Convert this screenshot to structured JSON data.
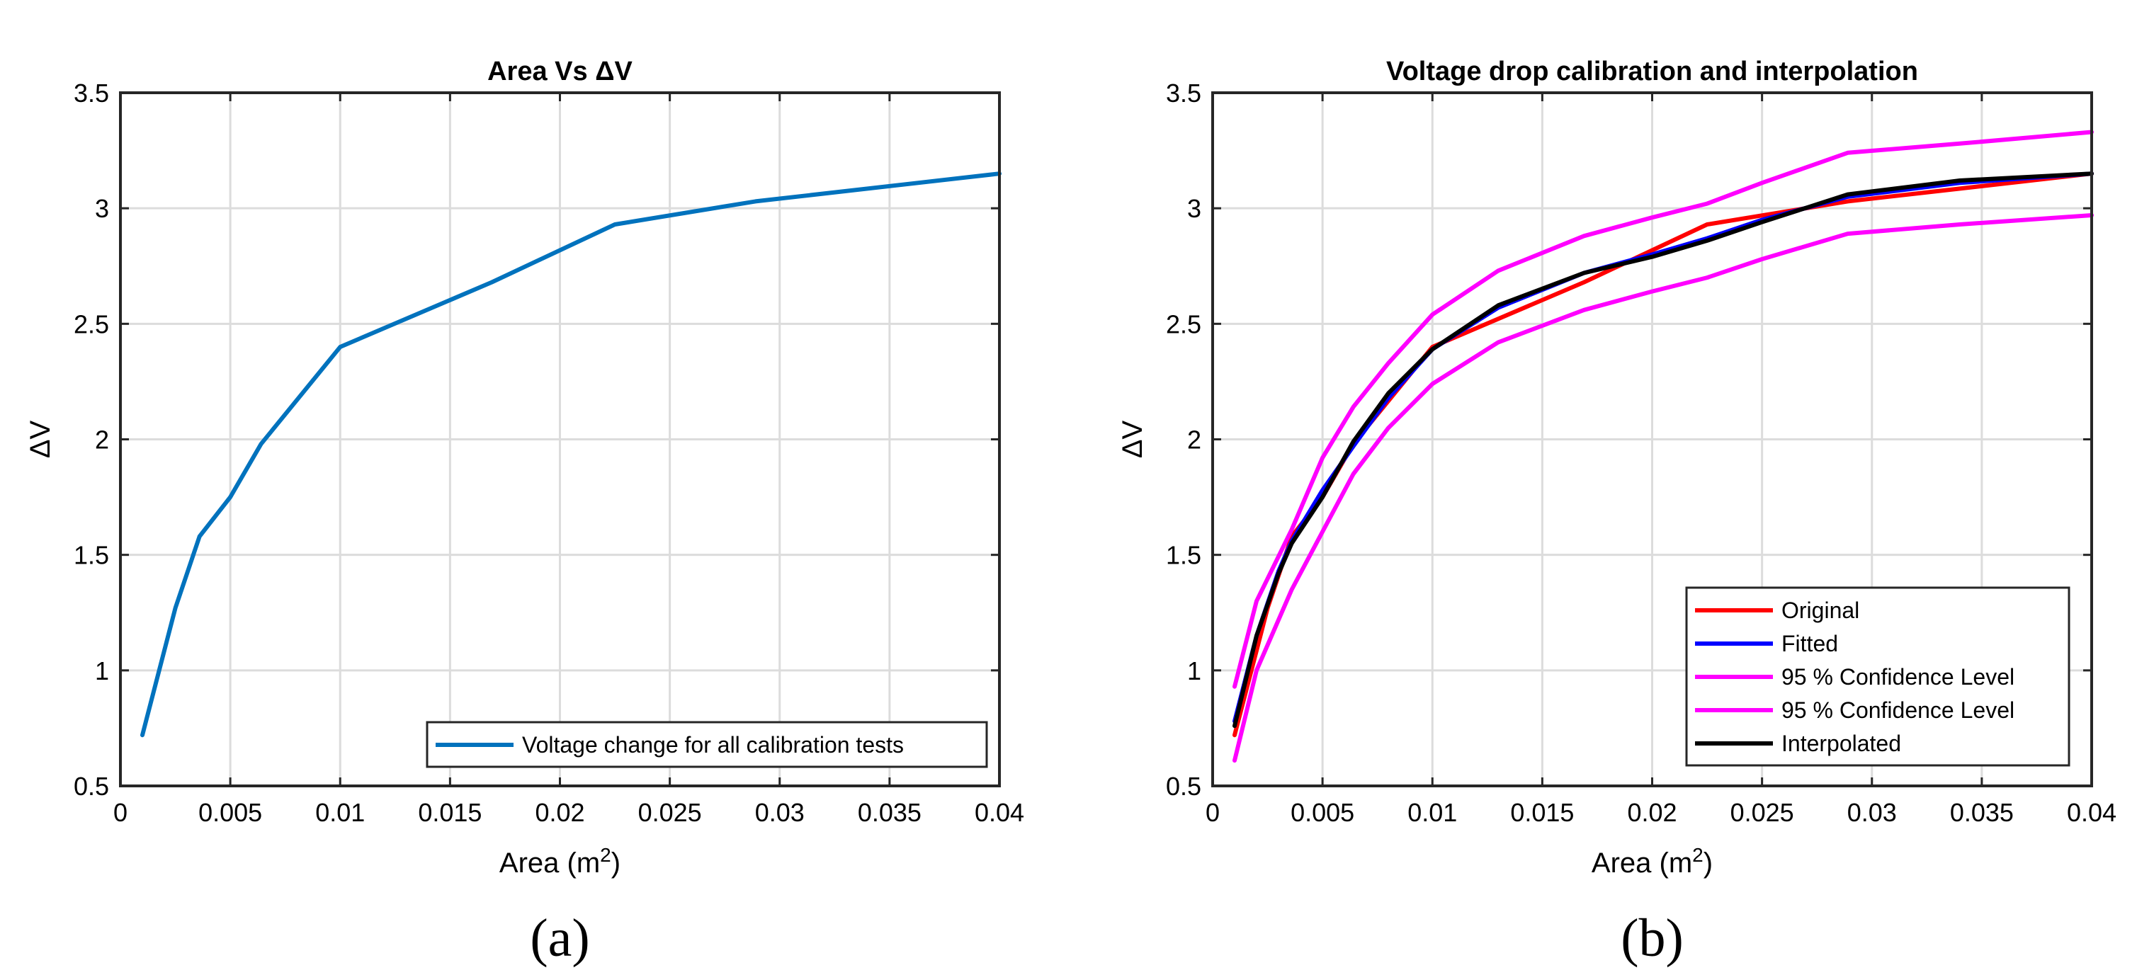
{
  "chart_data": [
    {
      "id": "a",
      "type": "line",
      "title": "Area Vs ΔV",
      "xlabel": "Area (m",
      "xlabel_sup": "2",
      "xlabel_close": ")",
      "ylabel": "ΔV",
      "caption": "(a)",
      "xlim": [
        0,
        0.04
      ],
      "ylim": [
        0.5,
        3.5
      ],
      "xticks": [
        0,
        0.005,
        0.01,
        0.015,
        0.02,
        0.025,
        0.03,
        0.035,
        0.04
      ],
      "xtick_labels": [
        "0",
        "0.005",
        "0.01",
        "0.015",
        "0.02",
        "0.025",
        "0.03",
        "0.035",
        "0.04"
      ],
      "yticks": [
        0.5,
        1,
        1.5,
        2,
        2.5,
        3,
        3.5
      ],
      "ytick_labels": [
        "0.5",
        "1",
        "1.5",
        "2",
        "2.5",
        "3",
        "3.5"
      ],
      "grid": true,
      "legend_position": "bottom-right",
      "series": [
        {
          "name": "Voltage change for all calibration tests",
          "color": "#0072BD",
          "x": [
            0.001,
            0.0025,
            0.0036,
            0.005,
            0.0064,
            0.01,
            0.0169,
            0.0225,
            0.0289,
            0.04
          ],
          "y": [
            0.72,
            1.27,
            1.58,
            1.75,
            1.98,
            2.4,
            2.68,
            2.93,
            3.03,
            3.15
          ]
        }
      ]
    },
    {
      "id": "b",
      "type": "line",
      "title": "Voltage drop calibration and interpolation",
      "xlabel": "Area (m",
      "xlabel_sup": "2",
      "xlabel_close": ")",
      "ylabel": "ΔV",
      "caption": "(b)",
      "xlim": [
        0,
        0.04
      ],
      "ylim": [
        0.5,
        3.5
      ],
      "xticks": [
        0,
        0.005,
        0.01,
        0.015,
        0.02,
        0.025,
        0.03,
        0.035,
        0.04
      ],
      "xtick_labels": [
        "0",
        "0.005",
        "0.01",
        "0.015",
        "0.02",
        "0.025",
        "0.03",
        "0.035",
        "0.04"
      ],
      "yticks": [
        0.5,
        1,
        1.5,
        2,
        2.5,
        3,
        3.5
      ],
      "ytick_labels": [
        "0.5",
        "1",
        "1.5",
        "2",
        "2.5",
        "3",
        "3.5"
      ],
      "grid": true,
      "legend_position": "bottom-right",
      "series": [
        {
          "name": "Original",
          "color": "#FF0000",
          "x": [
            0.001,
            0.0025,
            0.0036,
            0.005,
            0.0064,
            0.01,
            0.0169,
            0.0225,
            0.0289,
            0.04
          ],
          "y": [
            0.72,
            1.27,
            1.58,
            1.75,
            1.98,
            2.4,
            2.68,
            2.93,
            3.03,
            3.15
          ]
        },
        {
          "name": "Fitted",
          "color": "#0000FF",
          "x": [
            0.001,
            0.002,
            0.003,
            0.0036,
            0.005,
            0.0064,
            0.008,
            0.01,
            0.013,
            0.0169,
            0.02,
            0.0225,
            0.025,
            0.0289,
            0.034,
            0.04
          ],
          "y": [
            0.78,
            1.15,
            1.43,
            1.56,
            1.78,
            1.97,
            2.18,
            2.39,
            2.57,
            2.72,
            2.8,
            2.87,
            2.95,
            3.05,
            3.11,
            3.15
          ]
        },
        {
          "name": "95 % Confidence Level",
          "color": "#FF00FF",
          "x": [
            0.001,
            0.002,
            0.0036,
            0.005,
            0.0064,
            0.008,
            0.01,
            0.013,
            0.0169,
            0.02,
            0.0225,
            0.025,
            0.0289,
            0.034,
            0.04
          ],
          "y": [
            0.93,
            1.3,
            1.61,
            1.92,
            2.14,
            2.33,
            2.54,
            2.73,
            2.88,
            2.96,
            3.02,
            3.11,
            3.24,
            3.28,
            3.33
          ]
        },
        {
          "name": "95 % Confidence Level",
          "color": "#FF00FF",
          "x": [
            0.001,
            0.002,
            0.0036,
            0.005,
            0.0064,
            0.008,
            0.01,
            0.013,
            0.0169,
            0.02,
            0.0225,
            0.025,
            0.0289,
            0.034,
            0.04
          ],
          "y": [
            0.61,
            1.0,
            1.35,
            1.6,
            1.85,
            2.05,
            2.24,
            2.42,
            2.56,
            2.64,
            2.7,
            2.78,
            2.89,
            2.93,
            2.97
          ]
        },
        {
          "name": "Interpolated",
          "color": "#000000",
          "x": [
            0.001,
            0.002,
            0.003,
            0.0036,
            0.005,
            0.0064,
            0.008,
            0.01,
            0.013,
            0.0169,
            0.02,
            0.0225,
            0.025,
            0.0289,
            0.034,
            0.04
          ],
          "y": [
            0.76,
            1.15,
            1.42,
            1.55,
            1.75,
            1.99,
            2.2,
            2.39,
            2.58,
            2.72,
            2.79,
            2.86,
            2.94,
            3.06,
            3.12,
            3.15
          ]
        }
      ]
    }
  ]
}
